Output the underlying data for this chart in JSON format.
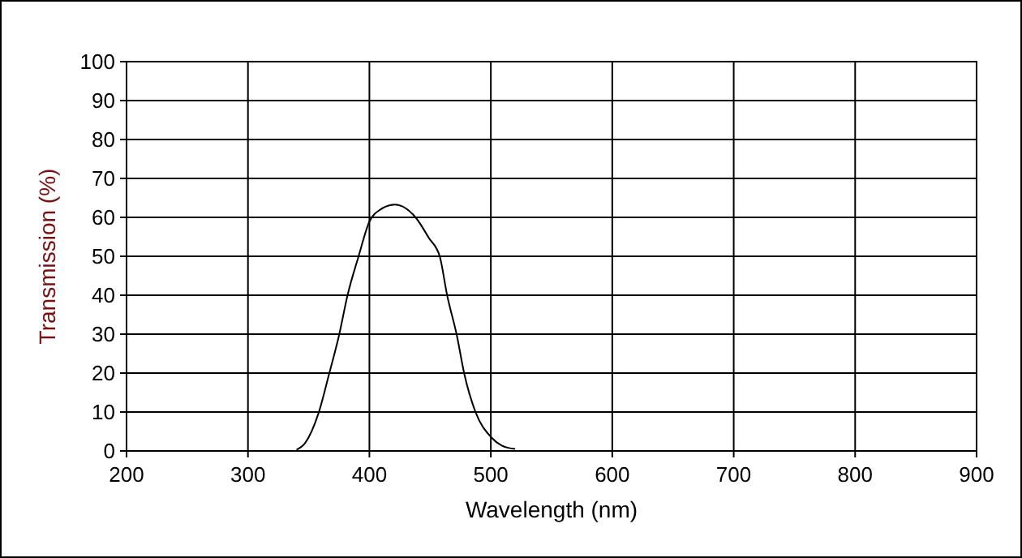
{
  "chart_data": {
    "type": "line",
    "xlabel": "Wavelength (nm)",
    "ylabel": "Transmission (%)",
    "x": [
      340,
      347,
      358,
      367,
      375,
      382,
      391,
      400,
      409,
      421,
      438,
      449,
      458,
      464,
      472,
      478,
      487,
      500,
      509,
      520
    ],
    "series": [
      {
        "color": "#000000",
        "values": [
          0.3,
          2,
          9.6,
          20,
          29.7,
          40,
          49.9,
          58.9,
          62,
          63.3,
          60,
          54.7,
          49.9,
          40,
          29.7,
          20,
          10.3,
          3.6,
          1.4,
          0.5
        ]
      }
    ],
    "xlim": [
      200,
      900
    ],
    "xticks": [
      200,
      300,
      400,
      500,
      600,
      700,
      800,
      900
    ],
    "ylim": [
      0,
      100
    ],
    "yticks": [
      0,
      10,
      20,
      30,
      40,
      50,
      60,
      70,
      80,
      90,
      100
    ],
    "grid": true,
    "marker": "none",
    "line_style": "solid"
  }
}
